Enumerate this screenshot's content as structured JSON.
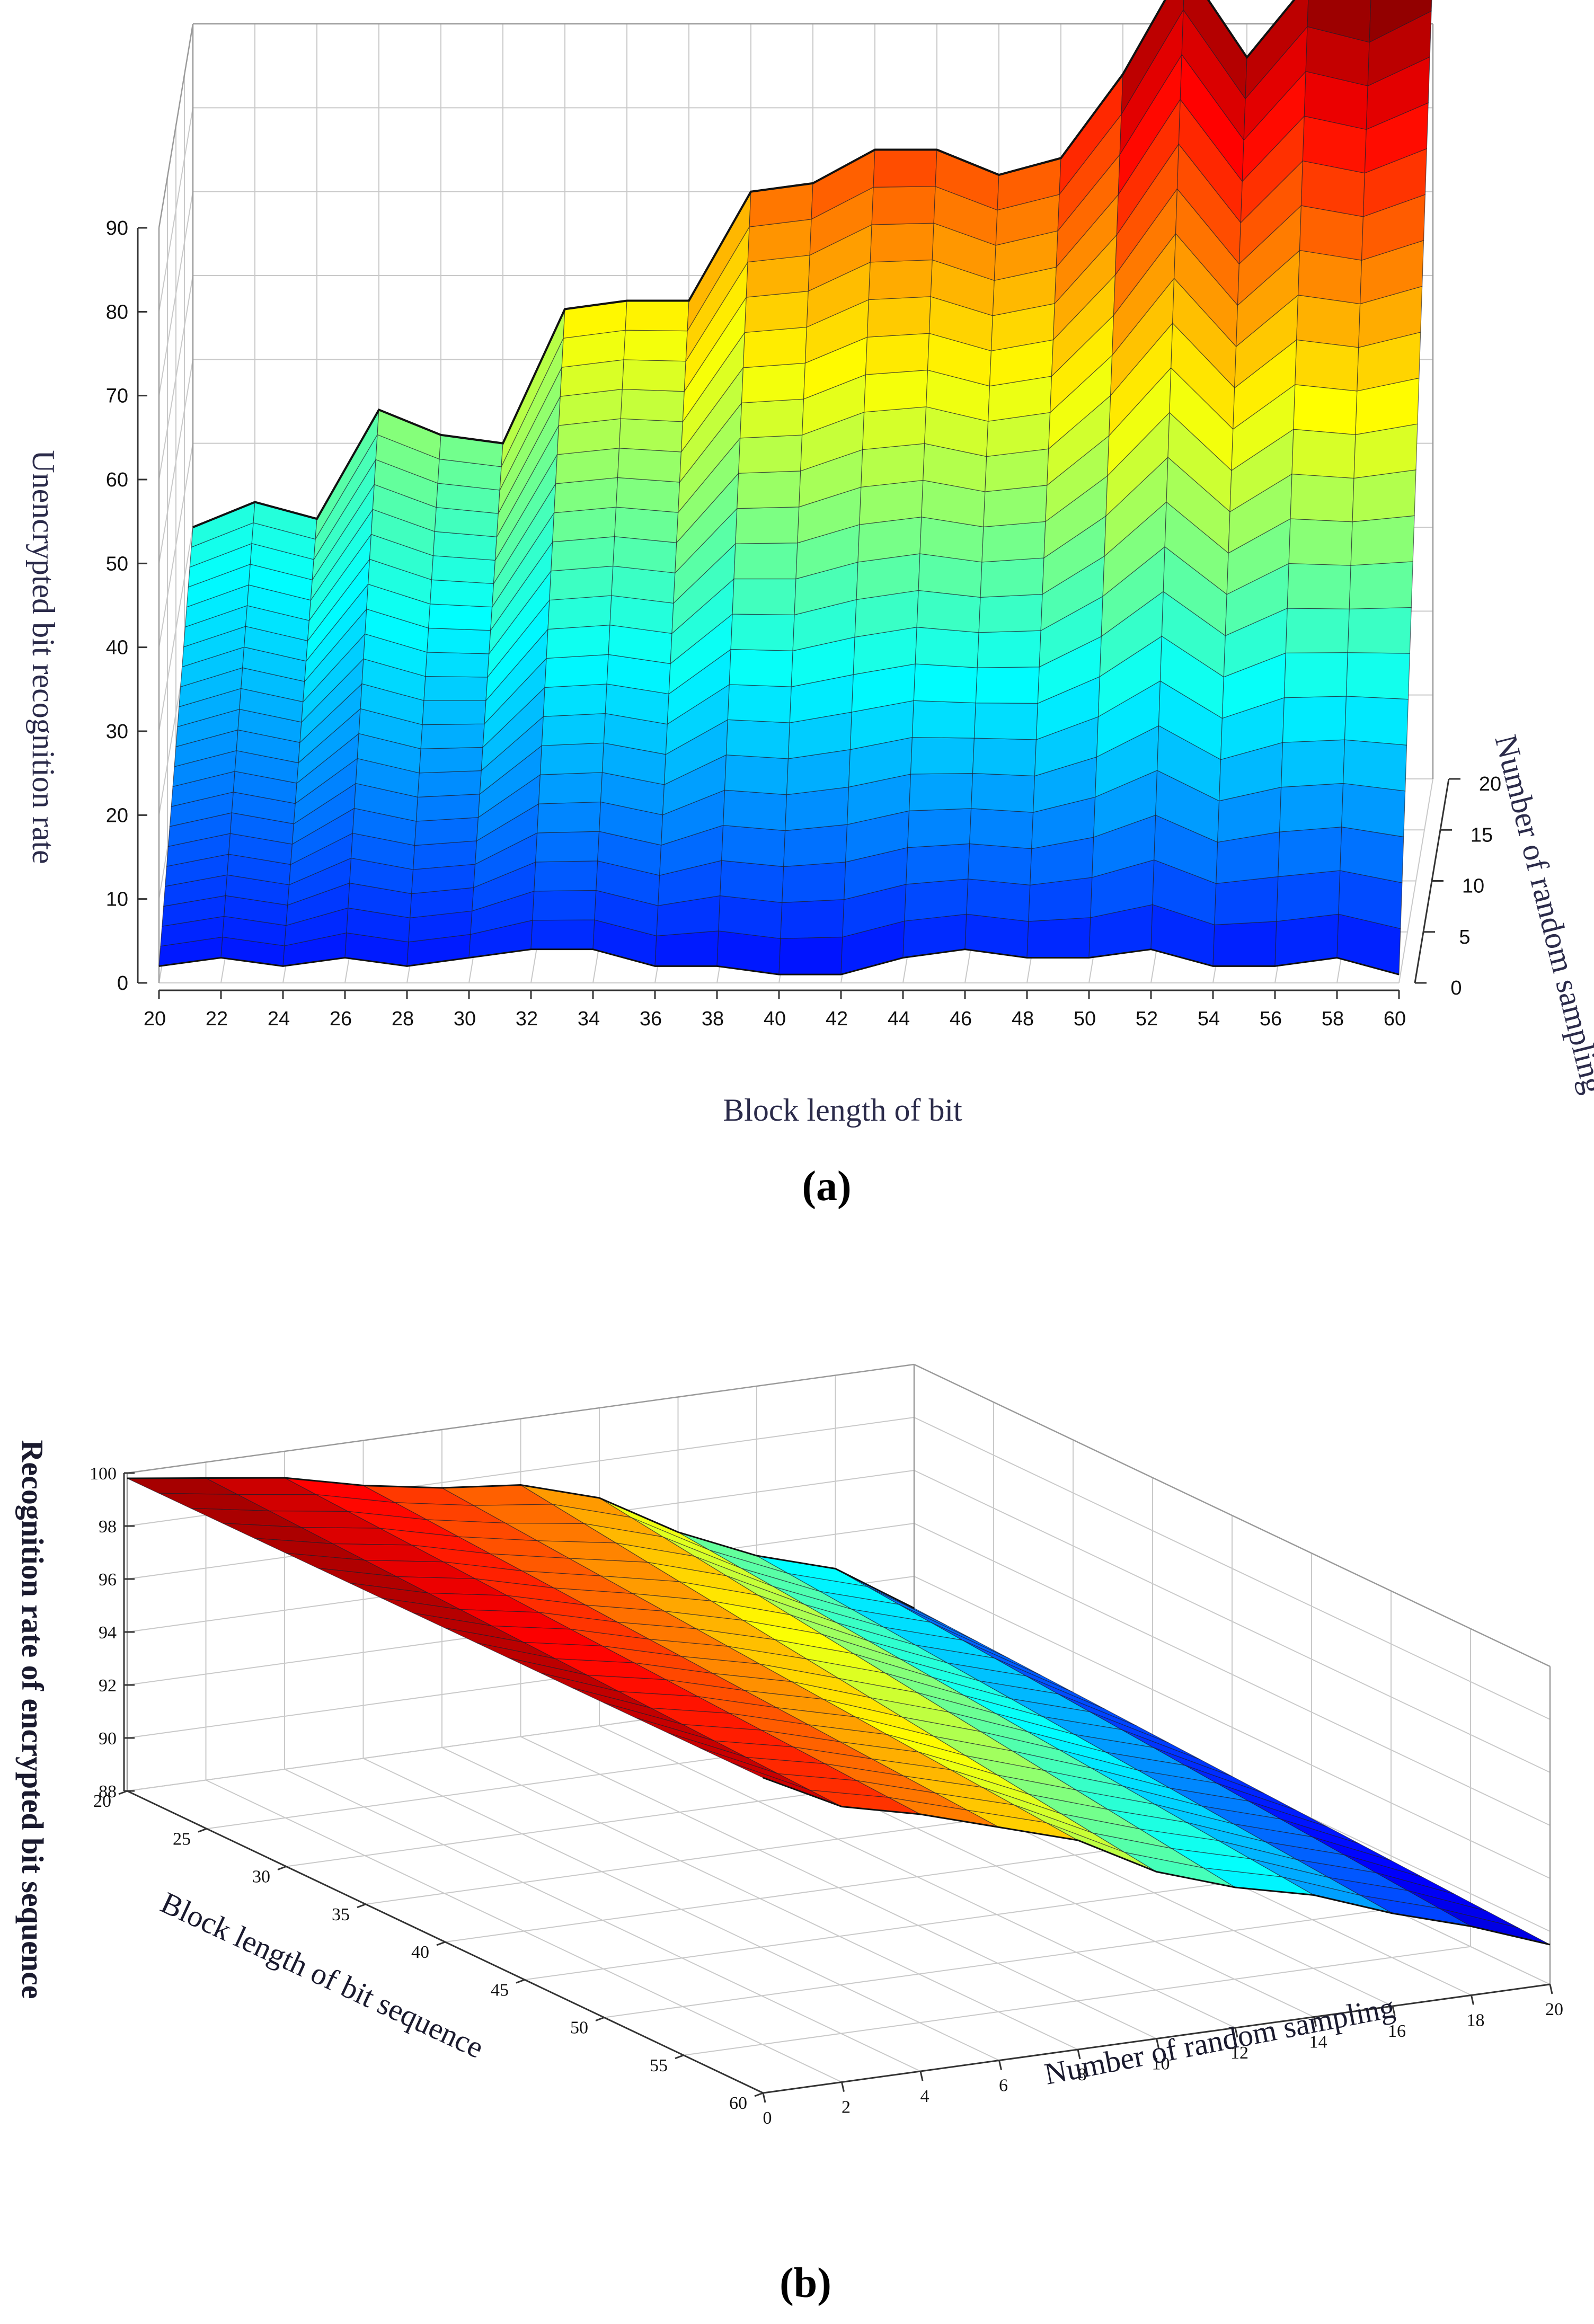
{
  "chart_data": [
    {
      "type": "surface",
      "panel_label": "(a)",
      "title": "",
      "xlabel": "Block length of bit",
      "ylabel": "Number of random sampling",
      "zlabel": "Unencrypted bit recognition rate",
      "x_ticks": [
        "20",
        "22",
        "24",
        "26",
        "28",
        "30",
        "32",
        "34",
        "36",
        "38",
        "40",
        "42",
        "44",
        "46",
        "48",
        "50",
        "52",
        "54",
        "56",
        "58",
        "60"
      ],
      "y_ticks": [
        "0",
        "5",
        "10",
        "15",
        "20"
      ],
      "z_ticks": [
        "0",
        "10",
        "20",
        "30",
        "40",
        "50",
        "60",
        "70",
        "80",
        "90"
      ],
      "xlim": [
        20,
        60
      ],
      "ylim": [
        0,
        20
      ],
      "zlim": [
        0,
        90
      ],
      "grid": true,
      "colormap": "jet",
      "x": [
        20,
        22,
        24,
        26,
        28,
        30,
        32,
        34,
        36,
        38,
        40,
        42,
        44,
        46,
        48,
        50,
        52,
        54,
        56,
        58,
        60
      ],
      "ridge_back_z": [
        30,
        33,
        31,
        44,
        41,
        40,
        56,
        57,
        57,
        70,
        71,
        75,
        75,
        72,
        74,
        84,
        97,
        86,
        95,
        93,
        97
      ],
      "ridge_front_z": [
        2,
        3,
        2,
        3,
        2,
        3,
        4,
        4,
        2,
        2,
        1,
        1,
        3,
        4,
        3,
        3,
        4,
        2,
        2,
        3,
        1
      ]
    },
    {
      "type": "surface",
      "panel_label": "(b)",
      "title": "",
      "xlabel": "Block length of bit sequence",
      "ylabel": "Number of random sampling",
      "zlabel": "Recognition rate of encrypted bit sequence",
      "x_ticks": [
        "20",
        "25",
        "30",
        "35",
        "40",
        "45",
        "50",
        "55",
        "60"
      ],
      "y_ticks": [
        "0",
        "2",
        "4",
        "6",
        "8",
        "10",
        "12",
        "14",
        "16",
        "18",
        "20"
      ],
      "z_ticks": [
        "88",
        "90",
        "92",
        "94",
        "96",
        "98",
        "100"
      ],
      "xlim": [
        20,
        60
      ],
      "ylim": [
        0,
        20
      ],
      "zlim": [
        88,
        100
      ],
      "grid": true,
      "colormap": "jet",
      "y": [
        0,
        2,
        4,
        6,
        8,
        10,
        12,
        14,
        16,
        18,
        20
      ],
      "ridge_near_z": [
        99.9,
        98.4,
        97.7,
        96.8,
        95.9,
        94.3,
        93.3,
        92.6,
        91.5,
        90.6,
        89.5
      ],
      "ridge_far_z": [
        99.8,
        99.4,
        99.0,
        98.3,
        97.8,
        97.5,
        96.6,
        94.9,
        93.6,
        92.7,
        90.8
      ]
    }
  ]
}
